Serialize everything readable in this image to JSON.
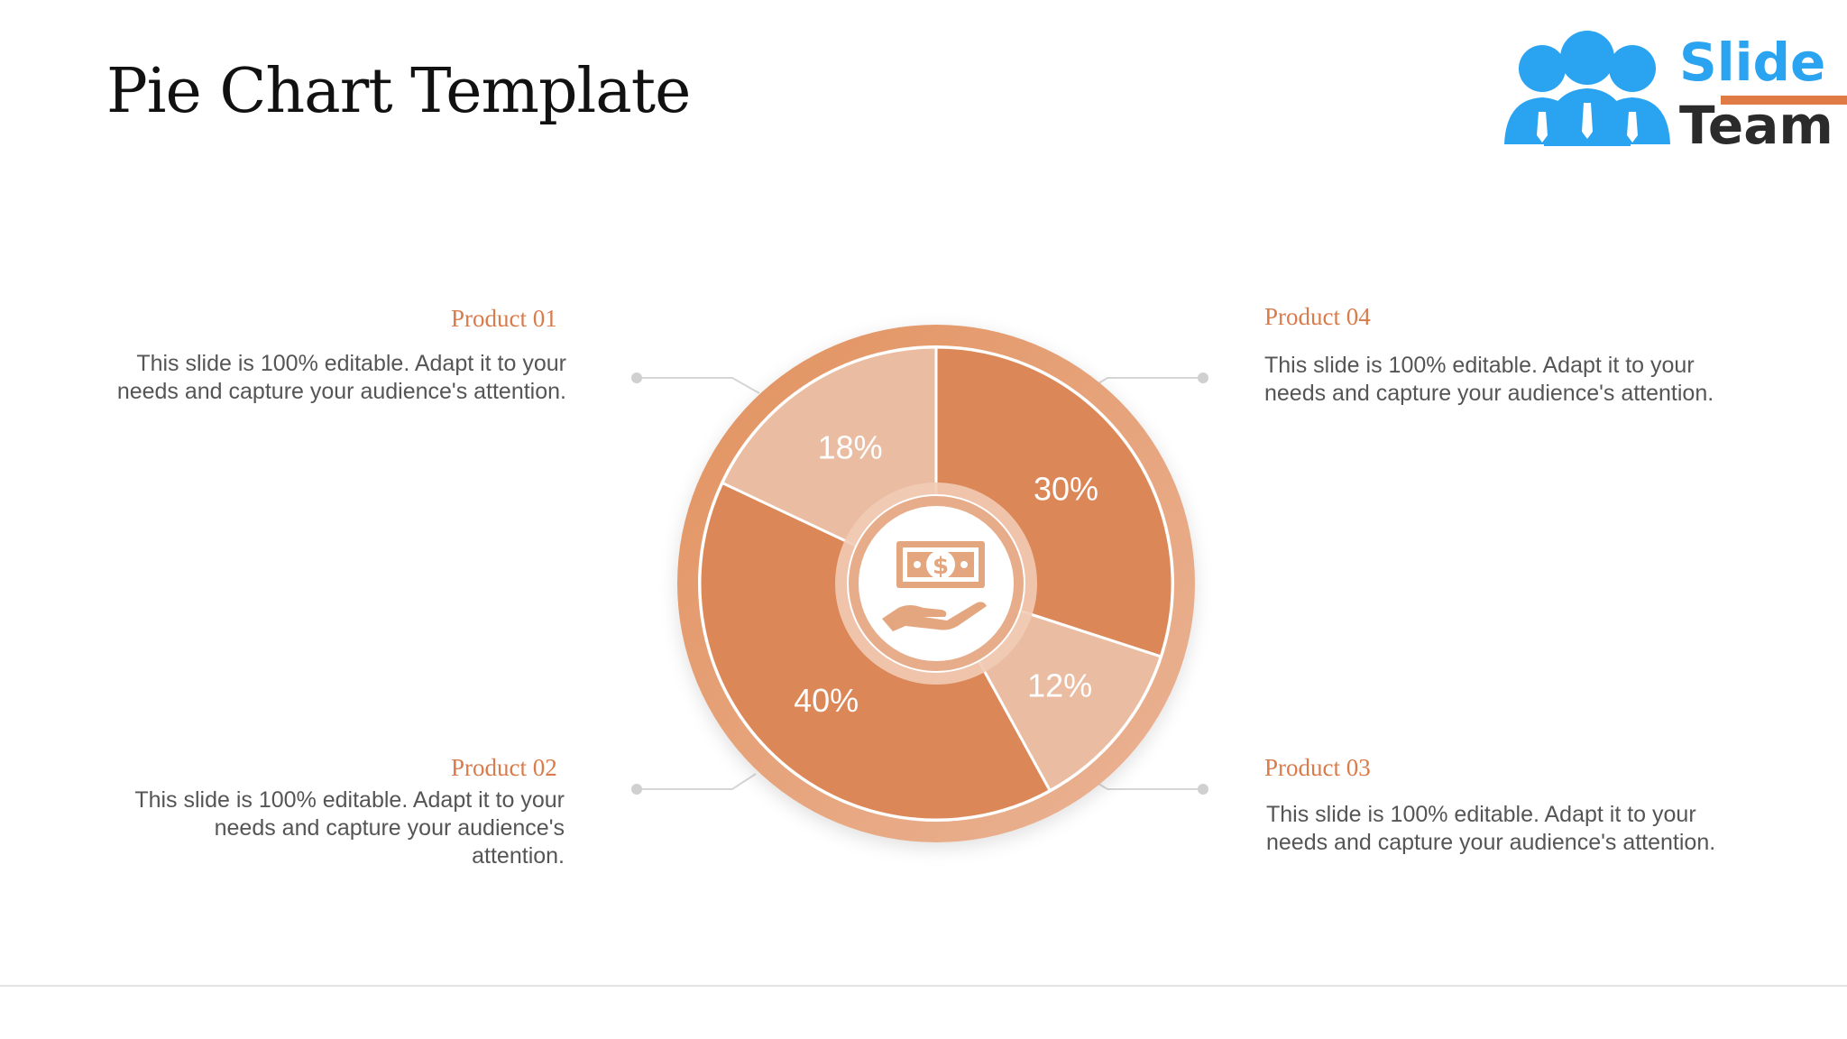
{
  "slide": {
    "title": "Pie Chart Template"
  },
  "logo": {
    "word1": "Slide",
    "word2": "Team",
    "color_primary": "#2aa3f0",
    "color_accent": "#e07b45",
    "icon": "people-icon"
  },
  "products": [
    {
      "title": "Product 01",
      "desc": "This slide is 100% editable. Adapt it to your needs and capture your audience's attention."
    },
    {
      "title": "Product 02",
      "desc": "This slide is 100% editable. Adapt it to your needs and capture your audience's attention."
    },
    {
      "title": "Product 03",
      "desc": "This slide is 100% editable. Adapt it to your needs and capture your audience's attention."
    },
    {
      "title": "Product 04",
      "desc": "This slide is 100% editable. Adapt it to your needs and capture your audience's attention."
    }
  ],
  "center_icon": "money-hand-icon",
  "colors": {
    "dark": "#db8757",
    "light": "#eabda3",
    "ring": "#e49a6f"
  },
  "chart_data": {
    "type": "pie",
    "title": "",
    "categories": [
      "",
      "",
      "",
      ""
    ],
    "values": [
      30,
      12,
      40,
      18
    ],
    "labels": [
      "30%",
      "12%",
      "40%",
      "18%"
    ],
    "slice_colors": [
      "#db8757",
      "#eabda3",
      "#db8757",
      "#eabda3"
    ],
    "legend": "none"
  }
}
